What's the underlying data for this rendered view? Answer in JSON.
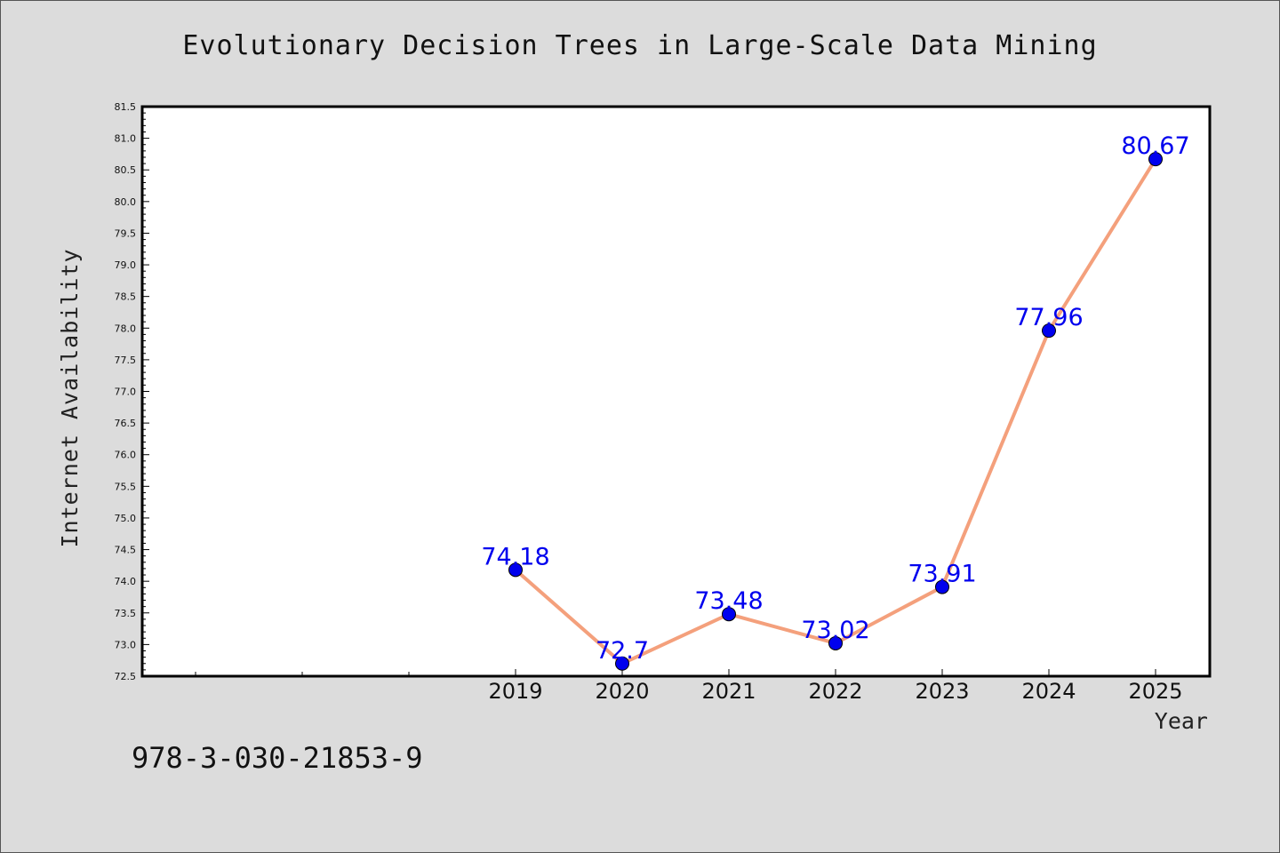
{
  "chart_data": {
    "type": "line",
    "title": "Evolutionary Decision Trees in Large-Scale Data Mining",
    "xlabel": "Year",
    "ylabel": "Internet Availability",
    "x": [
      "2019",
      "2020",
      "2021",
      "2022",
      "2023",
      "2024",
      "2025"
    ],
    "values": [
      74.18,
      72.7,
      73.48,
      73.02,
      73.91,
      77.96,
      80.67
    ],
    "data_labels": [
      "74.18",
      "72.7",
      "73.48",
      "73.02",
      "73.91",
      "77.96",
      "80.67"
    ],
    "ylim": [
      72.5,
      81.5
    ],
    "yticks": [
      "72.5",
      "73.0",
      "73.5",
      "74.0",
      "74.5",
      "75.0",
      "75.5",
      "76.0",
      "76.5",
      "77.0",
      "77.5",
      "78.0",
      "78.5",
      "79.0",
      "79.5",
      "80.0",
      "80.5",
      "81.0",
      "81.5"
    ],
    "grid": false,
    "legend": "none",
    "line_color": "#f4a07c",
    "marker_color": "#0000ee",
    "label_color": "#0000ee"
  },
  "footer": {
    "isbn": "978-3-030-21853-9"
  }
}
